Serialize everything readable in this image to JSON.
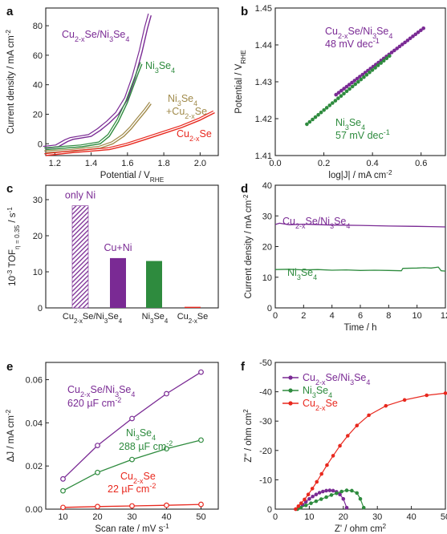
{
  "colors": {
    "purple": "#7a2a94",
    "green": "#2e8b3e",
    "olive": "#a08a4a",
    "red": "#e8281e",
    "axis": "#222222"
  },
  "chart_data": [
    {
      "panel": "a",
      "type": "line",
      "xlabel": "Potential / V",
      "xlabel_sub": "RHE",
      "ylabel": "Current density / mA cm",
      "ylabel_sup": "-2",
      "xlim": [
        1.15,
        2.1
      ],
      "ylim": [
        -8,
        92
      ],
      "xticks": [
        1.2,
        1.4,
        1.6,
        1.8,
        2.0
      ],
      "yticks": [
        0,
        20,
        40,
        60,
        80
      ],
      "grid": false,
      "series": [
        {
          "color": "purple",
          "label": {
            "main": "Cu",
            "sub": "2-x",
            "rest": "Se/Ni",
            "sub2": "3",
            "rest2": "Se",
            "sub3": "4"
          },
          "x": [
            1.15,
            1.22,
            1.27,
            1.3,
            1.35,
            1.4,
            1.45,
            1.5,
            1.55,
            1.6,
            1.64,
            1.68,
            1.71,
            1.73
          ],
          "y": [
            -3,
            -2,
            1.5,
            3,
            4,
            5,
            9,
            14,
            20,
            30,
            44,
            62,
            78,
            87
          ]
        },
        {
          "color": "green",
          "label": {
            "main": "Ni",
            "sub": "3",
            "rest": "Se",
            "sub2": "4",
            "rest2": "",
            "sub3": ""
          },
          "x": [
            1.15,
            1.25,
            1.35,
            1.45,
            1.5,
            1.55,
            1.6,
            1.63,
            1.66,
            1.68
          ],
          "y": [
            -4,
            -3,
            -2,
            0,
            5,
            15,
            28,
            38,
            48,
            54
          ]
        },
        {
          "color": "olive",
          "label": {
            "main": "Ni",
            "sub": "3",
            "rest": "Se",
            "sub2": "4",
            "rest2": "+Cu",
            "sub3": "2-x",
            "rest3": "Se"
          },
          "x": [
            1.15,
            1.3,
            1.45,
            1.52,
            1.58,
            1.62,
            1.66,
            1.7,
            1.73
          ],
          "y": [
            -6,
            -5,
            -3,
            0,
            5,
            10,
            16,
            22,
            27
          ]
        },
        {
          "color": "red",
          "label": {
            "main": "Cu",
            "sub": "2-x",
            "rest": "Se",
            "sub2": "",
            "rest2": "",
            "sub3": ""
          },
          "x": [
            1.15,
            1.3,
            1.5,
            1.6,
            1.7,
            1.8,
            1.9,
            2.0,
            2.08
          ],
          "y": [
            -8,
            -6,
            -4,
            -1,
            3,
            7,
            11,
            16,
            21
          ]
        }
      ]
    },
    {
      "panel": "b",
      "type": "scatter",
      "xlabel": "log|J| / mA cm",
      "xlabel_sup": "-2",
      "ylabel": "Potential / V",
      "ylabel_sub": "RHE",
      "xlim": [
        0.0,
        0.7
      ],
      "ylim": [
        1.41,
        1.45
      ],
      "xticks": [
        0.0,
        0.2,
        0.4,
        0.6
      ],
      "yticks": [
        1.41,
        1.42,
        1.43,
        1.44,
        1.45
      ],
      "grid": false,
      "series": [
        {
          "color": "purple",
          "label": {
            "main": "Cu",
            "sub": "2-x",
            "rest": "Se/Ni",
            "sub2": "3",
            "rest2": "Se",
            "sub3": "4"
          },
          "slope_text": "48 mV dec",
          "slope_sup": "-1",
          "x_range": [
            0.25,
            0.61
          ],
          "y_range": [
            1.4265,
            1.4445
          ],
          "n": 34
        },
        {
          "color": "green",
          "label": {
            "main": "Ni",
            "sub": "3",
            "rest": "Se",
            "sub2": "4",
            "rest2": "",
            "sub3": ""
          },
          "slope_text": "57 mV dec",
          "slope_sup": "-1",
          "x_range": [
            0.13,
            0.47
          ],
          "y_range": [
            1.4185,
            1.437
          ],
          "n": 30
        }
      ]
    },
    {
      "panel": "c",
      "type": "bar",
      "ylabel": "10",
      "ylabel_sup": "-3",
      "ylabel_rest": " TOF",
      "ylabel_sub": "η = 0.35",
      "ylabel_end": " / s",
      "ylabel_end_sup": "-1",
      "ylim": [
        0,
        34
      ],
      "yticks": [
        0,
        10,
        20,
        30
      ],
      "grid": false,
      "categories": [
        {
          "main": "Cu",
          "sub": "2-x",
          "rest": "Se/Ni",
          "sub2": "3",
          "rest2": "Se",
          "sub3": "4"
        },
        {
          "main": "Ni",
          "sub": "3",
          "rest": "Se",
          "sub2": "4",
          "rest2": "",
          "sub3": ""
        },
        {
          "main": "Cu",
          "sub": "2-x",
          "rest": "Se",
          "sub2": "",
          "rest2": "",
          "sub3": ""
        }
      ],
      "bars": [
        {
          "group": 0,
          "value": 28.3,
          "color": "purple",
          "style": "hatched",
          "annotation": "only Ni"
        },
        {
          "group": 0,
          "value": 13.8,
          "color": "purple",
          "style": "solid",
          "annotation": "Cu+Ni"
        },
        {
          "group": 1,
          "value": 13.0,
          "color": "green",
          "style": "solid",
          "annotation": ""
        },
        {
          "group": 2,
          "value": 0.3,
          "color": "red",
          "style": "solid",
          "annotation": ""
        }
      ]
    },
    {
      "panel": "d",
      "type": "line",
      "xlabel": "Time / h",
      "ylabel": "Current density / mA cm",
      "ylabel_sup": "-2",
      "xlim": [
        0,
        12
      ],
      "ylim": [
        0,
        40
      ],
      "xticks": [
        0,
        2,
        4,
        6,
        8,
        10,
        12
      ],
      "yticks": [
        0,
        10,
        20,
        30,
        40
      ],
      "grid": false,
      "series": [
        {
          "color": "purple",
          "label": {
            "main": "Cu",
            "sub": "2-x",
            "rest": "Se/Ni",
            "sub2": "3",
            "rest2": "Se",
            "sub3": "4"
          },
          "x": [
            0,
            0.3,
            1,
            2,
            4,
            6,
            8,
            10,
            11,
            12
          ],
          "y": [
            27.2,
            27.6,
            27.1,
            27.3,
            27.0,
            26.9,
            26.7,
            26.6,
            26.5,
            26.4
          ]
        },
        {
          "color": "green",
          "label": {
            "main": "Ni",
            "sub": "3",
            "rest": "Se",
            "sub2": "4",
            "rest2": "",
            "sub3": ""
          },
          "x": [
            0,
            1,
            2,
            3,
            4,
            5,
            6,
            7,
            8,
            8.9,
            9,
            10,
            10.5,
            11,
            11.5,
            11.7,
            12
          ],
          "y": [
            12.5,
            12.6,
            12.4,
            12.5,
            12.3,
            12.4,
            12.2,
            12.3,
            12.2,
            12.1,
            12.9,
            13.0,
            13.1,
            13.0,
            13.3,
            12.1,
            12.0
          ]
        }
      ]
    },
    {
      "panel": "e",
      "type": "line",
      "xlabel": "Scan rate / mV s",
      "xlabel_sup": "-1",
      "ylabel": "ΔJ / mA cm",
      "ylabel_sup": "-2",
      "xlim": [
        5,
        55
      ],
      "ylim": [
        0,
        0.068
      ],
      "xticks": [
        10,
        20,
        30,
        40,
        50
      ],
      "yticks": [
        0.0,
        0.02,
        0.04,
        0.06
      ],
      "ytick_labels": [
        "0.00",
        "0.02",
        "0.04",
        "0.06"
      ],
      "grid": false,
      "series": [
        {
          "color": "purple",
          "label": {
            "main": "Cu",
            "sub": "2-x",
            "rest": "Se/Ni",
            "sub2": "3",
            "rest2": "Se",
            "sub3": "4"
          },
          "cap_text": "620 µF cm",
          "cap_sup": "-2",
          "x": [
            10,
            20,
            30,
            40,
            50
          ],
          "y": [
            0.014,
            0.0295,
            0.042,
            0.0535,
            0.0635
          ]
        },
        {
          "color": "green",
          "label": {
            "main": "Ni",
            "sub": "3",
            "rest": "Se",
            "sub2": "4",
            "rest2": "",
            "sub3": ""
          },
          "cap_text": "288 µF cm",
          "cap_sup": "-2",
          "x": [
            10,
            20,
            30,
            40,
            50
          ],
          "y": [
            0.0085,
            0.017,
            0.023,
            0.028,
            0.032
          ]
        },
        {
          "color": "red",
          "label": {
            "main": "Cu",
            "sub": "2-x",
            "rest": "Se",
            "sub2": "",
            "rest2": "",
            "sub3": ""
          },
          "cap_text": "22 µF cm",
          "cap_sup": "-2",
          "x": [
            10,
            20,
            30,
            40,
            50
          ],
          "y": [
            0.0008,
            0.0012,
            0.0015,
            0.0018,
            0.0022
          ]
        }
      ]
    },
    {
      "panel": "f",
      "type": "scatter",
      "xlabel": "Z' / ohm cm",
      "xlabel_sup": "2",
      "ylabel": "Z'' / ohm cm",
      "ylabel_sup": "2",
      "xlim": [
        0,
        50
      ],
      "ylim": [
        0,
        -50
      ],
      "xticks": [
        0,
        10,
        20,
        30,
        40,
        50
      ],
      "yticks": [
        0,
        -10,
        -20,
        -30,
        -40,
        -50
      ],
      "grid": false,
      "series": [
        {
          "color": "purple",
          "label": {
            "main": "Cu",
            "sub": "2-x",
            "rest": "Se/Ni",
            "sub2": "3",
            "rest2": "Se",
            "sub3": "4"
          },
          "x": [
            6,
            7,
            8,
            9,
            10,
            11,
            12,
            13,
            14,
            15,
            16,
            17,
            18,
            19,
            20,
            21
          ],
          "y": [
            0,
            -0.5,
            -1.5,
            -2.5,
            -3.5,
            -4.3,
            -5.0,
            -5.6,
            -6.0,
            -6.3,
            -6.4,
            -6.3,
            -5.9,
            -5.0,
            -3.5,
            -0.5
          ]
        },
        {
          "color": "green",
          "label": {
            "main": "Ni",
            "sub": "3",
            "rest": "Se",
            "sub2": "4",
            "rest2": "",
            "sub3": ""
          },
          "x": [
            6.5,
            7.5,
            9,
            10.5,
            12,
            13.5,
            15,
            16.5,
            18,
            19.5,
            21,
            22.5,
            24,
            25,
            26
          ],
          "y": [
            0,
            -0.5,
            -1.3,
            -2.0,
            -2.7,
            -3.4,
            -4.1,
            -4.8,
            -5.4,
            -6.0,
            -6.4,
            -6.3,
            -5.5,
            -3.5,
            -0.5
          ]
        },
        {
          "color": "red",
          "label": {
            "main": "Cu",
            "sub": "2-x",
            "rest": "Se",
            "sub2": "",
            "rest2": "",
            "sub3": ""
          },
          "x": [
            6,
            6.8,
            7.6,
            8.6,
            9.7,
            10.9,
            12.2,
            13.6,
            15.2,
            17,
            19,
            21.3,
            24,
            27.5,
            32.5,
            38,
            44.5,
            50
          ],
          "y": [
            0,
            -1,
            -2,
            -3.3,
            -5,
            -7,
            -9.3,
            -12,
            -15,
            -18.2,
            -21.6,
            -25,
            -28.5,
            -32,
            -35.2,
            -37.2,
            -38.8,
            -39.5
          ]
        }
      ]
    }
  ]
}
